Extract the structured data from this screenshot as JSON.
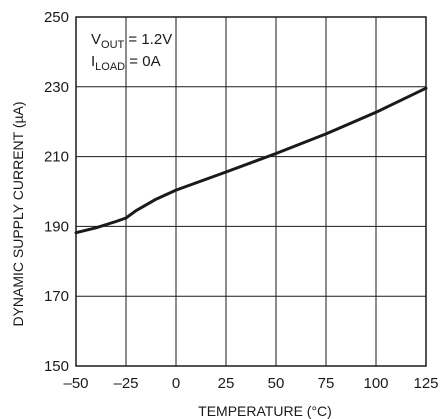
{
  "chart_data": {
    "type": "line",
    "xlabel": "TEMPERATURE (°C)",
    "ylabel": "DYNAMIC SUPPLY CURRENT (µA)",
    "xlim": [
      -50,
      125
    ],
    "ylim": [
      150,
      250
    ],
    "xticks": [
      -50,
      -25,
      0,
      25,
      50,
      75,
      100,
      125
    ],
    "yticks": [
      150,
      170,
      190,
      210,
      230,
      250
    ],
    "x_tick_labels": [
      "–50",
      "–25",
      "0",
      "25",
      "50",
      "75",
      "100",
      "125"
    ],
    "y_tick_labels": [
      "150",
      "170",
      "190",
      "210",
      "230",
      "250"
    ],
    "grid": true,
    "annotations": {
      "line1": {
        "main": "V",
        "sub": "OUT",
        "rest": " = 1.2V"
      },
      "line2": {
        "main": "I",
        "sub": "LOAD",
        "rest": " = 0A"
      }
    },
    "series": [
      {
        "x": [
          -50,
          -40,
          -30,
          -25,
          -20,
          -10,
          0,
          25,
          50,
          75,
          100,
          125
        ],
        "values": [
          188.2,
          189.6,
          191.4,
          192.4,
          194.5,
          197.8,
          200.4,
          205.6,
          210.9,
          216.5,
          222.7,
          229.6
        ]
      }
    ]
  }
}
